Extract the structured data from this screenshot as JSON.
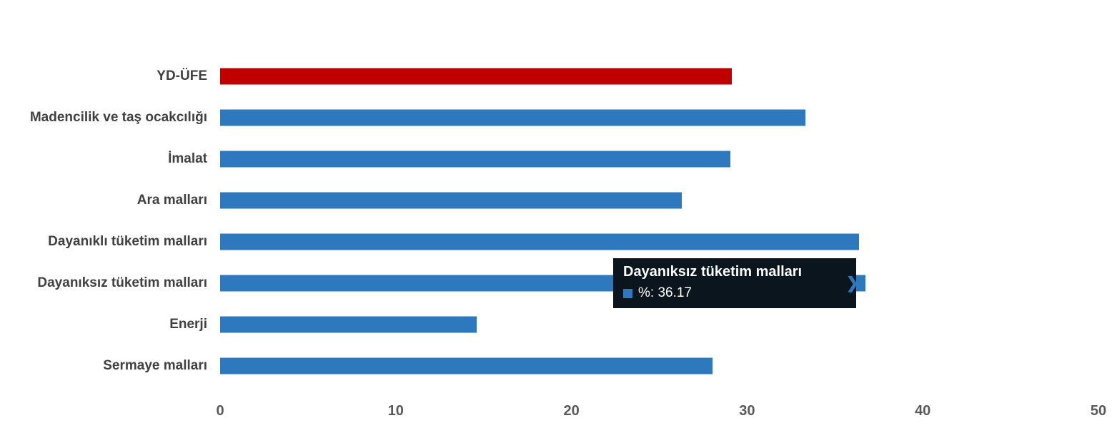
{
  "chart_data": {
    "type": "bar",
    "orientation": "horizontal",
    "title": "",
    "xlabel": "",
    "ylabel": "",
    "xlim": [
      0,
      50
    ],
    "x_ticks": [
      0,
      10,
      20,
      30,
      40,
      50
    ],
    "grid": false,
    "categories": [
      "YD-ÜFE",
      "Madencilik ve taş ocakcılığı",
      "İmalat",
      "Ara malları",
      "Dayanıklı tüketim malları",
      "Dayanıksız tüketim malları",
      "Enerji",
      "Sermaye malları"
    ],
    "values": [
      28.7,
      32.8,
      28.6,
      25.9,
      35.8,
      36.17,
      14.4,
      27.6
    ],
    "bar_colors": [
      "#c00000",
      "#2e79bd",
      "#2e79bd",
      "#2e79bd",
      "#2e79bd",
      "#2e79bd",
      "#2e79bd",
      "#2e79bd"
    ]
  },
  "tooltip": {
    "title": "Dayanıksız tüketim malları",
    "value_label": "%: 36.17",
    "marker_color": "#2e79bd",
    "chevron": "❯",
    "background": "#0b151d"
  },
  "colors": {
    "category_label": "#404040",
    "tick_label": "#595959",
    "accent_red": "#c00000",
    "accent_blue": "#2e79bd"
  }
}
